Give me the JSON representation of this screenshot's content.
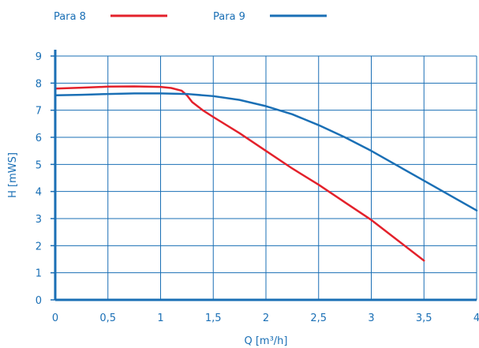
{
  "chart_data": {
    "type": "line",
    "xlabel": "Q [m³/h]",
    "ylabel": "H [mWS]",
    "xlim": [
      0,
      4
    ],
    "ylim": [
      0,
      9
    ],
    "x_ticks": [
      "0",
      "0,5",
      "1",
      "1,5",
      "2",
      "2,5",
      "3",
      "3,5",
      "4"
    ],
    "y_ticks": [
      "0",
      "1",
      "2",
      "3",
      "4",
      "5",
      "6",
      "7",
      "8",
      "9"
    ],
    "grid": true,
    "legend_position": "top-left",
    "series": [
      {
        "name": "Para 8",
        "color": "#e3212b",
        "points": [
          [
            0,
            7.8
          ],
          [
            0.25,
            7.83
          ],
          [
            0.5,
            7.87
          ],
          [
            0.75,
            7.88
          ],
          [
            1.0,
            7.86
          ],
          [
            1.1,
            7.82
          ],
          [
            1.2,
            7.72
          ],
          [
            1.25,
            7.55
          ],
          [
            1.3,
            7.3
          ],
          [
            1.4,
            7.0
          ],
          [
            1.5,
            6.75
          ],
          [
            1.75,
            6.15
          ],
          [
            2.0,
            5.5
          ],
          [
            2.25,
            4.85
          ],
          [
            2.5,
            4.25
          ],
          [
            2.75,
            3.6
          ],
          [
            3.0,
            2.95
          ],
          [
            3.25,
            2.2
          ],
          [
            3.5,
            1.45
          ]
        ]
      },
      {
        "name": "Para 9",
        "color": "#1a6fb5",
        "points": [
          [
            0,
            7.55
          ],
          [
            0.25,
            7.57
          ],
          [
            0.5,
            7.6
          ],
          [
            0.75,
            7.62
          ],
          [
            1.0,
            7.62
          ],
          [
            1.25,
            7.6
          ],
          [
            1.5,
            7.52
          ],
          [
            1.75,
            7.38
          ],
          [
            2.0,
            7.15
          ],
          [
            2.25,
            6.85
          ],
          [
            2.5,
            6.45
          ],
          [
            2.75,
            6.0
          ],
          [
            3.0,
            5.5
          ],
          [
            3.25,
            4.95
          ],
          [
            3.5,
            4.4
          ],
          [
            3.75,
            3.85
          ],
          [
            4.0,
            3.3
          ]
        ]
      }
    ]
  }
}
